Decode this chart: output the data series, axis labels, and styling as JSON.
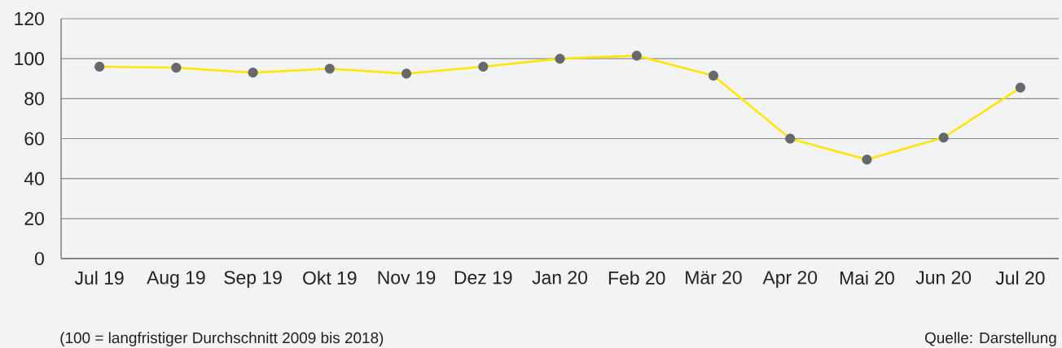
{
  "chart_data": {
    "type": "line",
    "categories": [
      "Jul 19",
      "Aug 19",
      "Sep 19",
      "Okt 19",
      "Nov 19",
      "Dez 19",
      "Jan 20",
      "Feb 20",
      "Mär 20",
      "Apr 20",
      "Mai 20",
      "Jun 20",
      "Jul 20"
    ],
    "series": [
      {
        "color": "#ffe600",
        "values": [
          96,
          95.5,
          93,
          95,
          92.5,
          96,
          100,
          101.5,
          91.5,
          60,
          49.5,
          60.5,
          85.5
        ]
      }
    ],
    "ylim": [
      0,
      120
    ],
    "yticks": [
      0,
      20,
      40,
      60,
      80,
      100,
      120
    ],
    "grid": "y",
    "marker": "circle",
    "line_style": "solid",
    "annotations": [
      "(100 = langfristiger Durchschnitt 2009 bis 2018)",
      "Quelle: Darstellung"
    ]
  }
}
